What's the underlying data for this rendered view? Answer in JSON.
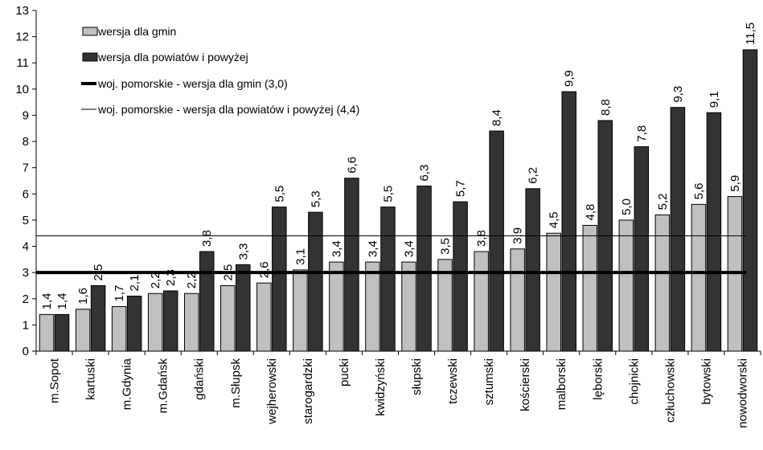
{
  "chart_data": {
    "type": "bar",
    "categories": [
      "m.Sopot",
      "kartuski",
      "m.Gdynia",
      "m.Gdańsk",
      "gdański",
      "m.Słupsk",
      "wejherowski",
      "starogardzki",
      "pucki",
      "kwidzyński",
      "słupski",
      "tczewski",
      "sztumski",
      "kościerski",
      "malborski",
      "lęborski",
      "chojnicki",
      "człuchowski",
      "bytowski",
      "nowodworski"
    ],
    "series": [
      {
        "name": "wersja dla gmin",
        "color": "#c0c0c0",
        "values": [
          1.4,
          1.6,
          1.7,
          2.2,
          2.2,
          2.5,
          2.6,
          3.1,
          3.4,
          3.4,
          3.4,
          3.5,
          3.8,
          3.9,
          4.5,
          4.8,
          5.0,
          5.2,
          5.6,
          5.9
        ],
        "labels": [
          "1,4",
          "1,6",
          "1,7",
          "2,2",
          "2,2",
          "2,5",
          "2,6",
          "3,1",
          "3,4",
          "3,4",
          "3,4",
          "3,5",
          "3,8",
          "3,9",
          "4,5",
          "4,8",
          "5,0",
          "5,2",
          "5,6",
          "5,9"
        ]
      },
      {
        "name": "wersja dla powiatów i powyżej",
        "color": "#333333",
        "values": [
          1.4,
          2.5,
          2.1,
          2.3,
          3.8,
          3.3,
          5.5,
          5.3,
          6.6,
          5.5,
          6.3,
          5.7,
          8.4,
          6.2,
          9.9,
          8.8,
          7.8,
          9.3,
          9.1,
          11.5
        ],
        "labels": [
          "1,4",
          "2,5",
          "2,1",
          "2,3",
          "3,8",
          "3,3",
          "5,5",
          "5,3",
          "6,6",
          "5,5",
          "6,3",
          "5,7",
          "8,4",
          "6,2",
          "9,9",
          "8,8",
          "7,8",
          "9,3",
          "9,1",
          "11,5"
        ]
      }
    ],
    "reference_lines": [
      {
        "name": "woj. pomorskie  - wersja dla gmin (3,0)",
        "value": 3.0,
        "style": "thick"
      },
      {
        "name": "woj. pomorskie  - wersja dla powiatów i powyżej (4,4)",
        "value": 4.4,
        "style": "thin"
      }
    ],
    "ylim": [
      0,
      13
    ],
    "yticks": [
      0,
      1,
      2,
      3,
      4,
      5,
      6,
      7,
      8,
      9,
      10,
      11,
      12,
      13
    ],
    "grid": false,
    "legend_position": "top-left"
  }
}
